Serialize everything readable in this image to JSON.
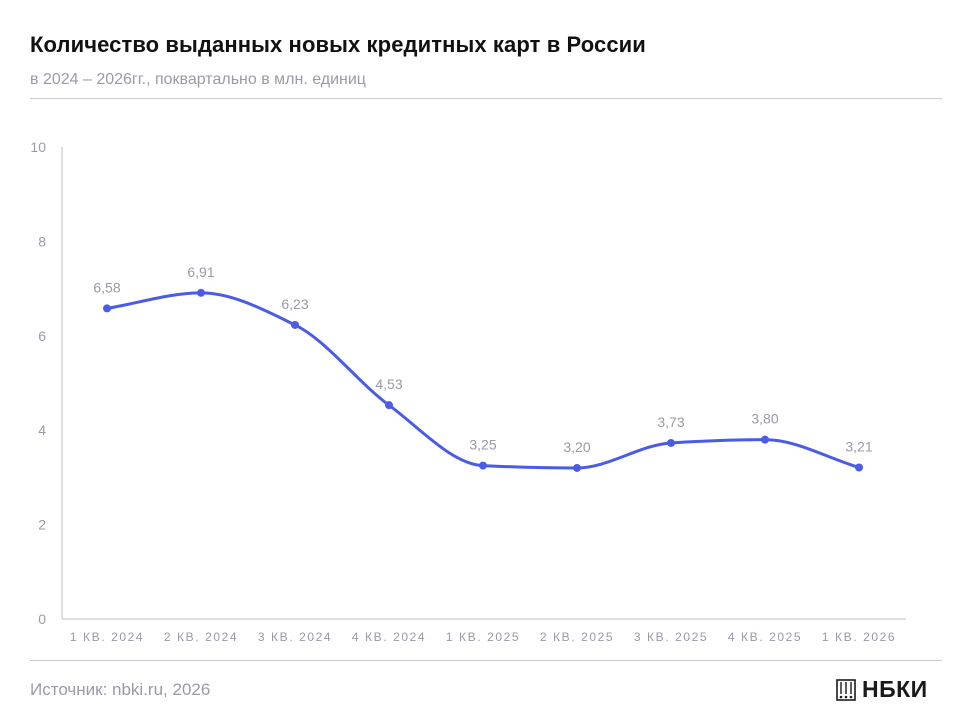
{
  "header": {
    "title": "Количество выданных новых кредитных карт в России",
    "subtitle": "в 2024 – 2026гг., поквартально в млн. единиц"
  },
  "footer": {
    "source": "Источник: nbki.ru, 2026",
    "logo_text": "НБКИ"
  },
  "colors": {
    "line": "#4a5be6",
    "axis": "#bfc2cc",
    "labels": "#9a9aa8"
  },
  "chart_data": {
    "type": "line",
    "categories": [
      "1 кв. 2024",
      "2 кв. 2024",
      "3 кв. 2024",
      "4 кв. 2024",
      "1 кв. 2025",
      "2 кв. 2025",
      "3 кв. 2025",
      "4 кв. 2025",
      "1 кв. 2026"
    ],
    "series": [
      {
        "values": [
          6.58,
          6.91,
          6.23,
          4.53,
          3.25,
          3.2,
          3.73,
          3.8,
          3.21
        ]
      }
    ],
    "data_labels": [
      "6,58",
      "6,91",
      "6,23",
      "4,53",
      "3,25",
      "3,20",
      "3,73",
      "3,80",
      "3,21"
    ],
    "y_ticks": [
      "0",
      "2",
      "4",
      "6",
      "8",
      "10"
    ],
    "ylim": [
      0,
      10
    ],
    "grid": false,
    "smooth": true
  }
}
